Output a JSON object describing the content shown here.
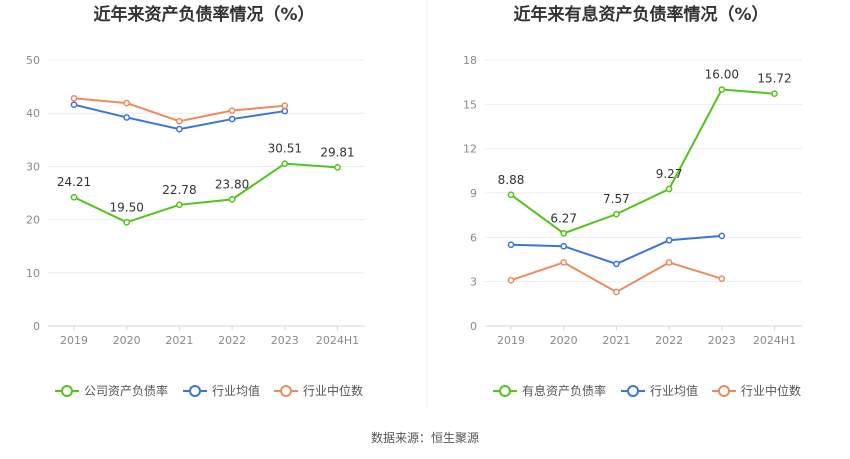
{
  "source_text": "数据来源：恒生聚源",
  "chart_data": [
    {
      "type": "line",
      "title": "近年来资产负债率情况（%）",
      "categories": [
        "2019",
        "2020",
        "2021",
        "2022",
        "2023",
        "2024H1"
      ],
      "ylim": [
        0,
        50
      ],
      "yticks": [
        0,
        10,
        20,
        30,
        40,
        50
      ],
      "grid": true,
      "legend_position": "bottom",
      "series": [
        {
          "name": "公司资产负债率",
          "color": "#52c41a",
          "values": [
            24.21,
            19.5,
            22.78,
            23.8,
            30.51,
            29.81
          ],
          "labels": [
            "24.21",
            "19.50",
            "22.78",
            "23.80",
            "30.51",
            "29.81"
          ]
        },
        {
          "name": "行业均值",
          "color": "#3b75d9",
          "values": [
            41.6,
            39.2,
            37.0,
            38.9,
            40.4,
            null
          ]
        },
        {
          "name": "行业中位数",
          "color": "#ef8a5f",
          "values": [
            42.8,
            41.9,
            38.5,
            40.5,
            41.4,
            null
          ]
        }
      ]
    },
    {
      "type": "line",
      "title": "近年来有息资产负债率情况（%）",
      "categories": [
        "2019",
        "2020",
        "2021",
        "2022",
        "2023",
        "2024H1"
      ],
      "ylim": [
        0,
        18
      ],
      "yticks": [
        0,
        3,
        6,
        9,
        12,
        15,
        18
      ],
      "grid": true,
      "legend_position": "bottom",
      "series": [
        {
          "name": "有息资产负债率",
          "color": "#52c41a",
          "values": [
            8.88,
            6.27,
            7.57,
            9.27,
            16.0,
            15.72
          ],
          "labels": [
            "8.88",
            "6.27",
            "7.57",
            "9.27",
            "16.00",
            "15.72"
          ]
        },
        {
          "name": "行业均值",
          "color": "#3b75d9",
          "values": [
            5.5,
            5.4,
            4.2,
            5.8,
            6.1,
            null
          ]
        },
        {
          "name": "行业中位数",
          "color": "#ef8a5f",
          "values": [
            3.1,
            4.3,
            2.3,
            4.3,
            3.2,
            null
          ]
        }
      ]
    }
  ]
}
